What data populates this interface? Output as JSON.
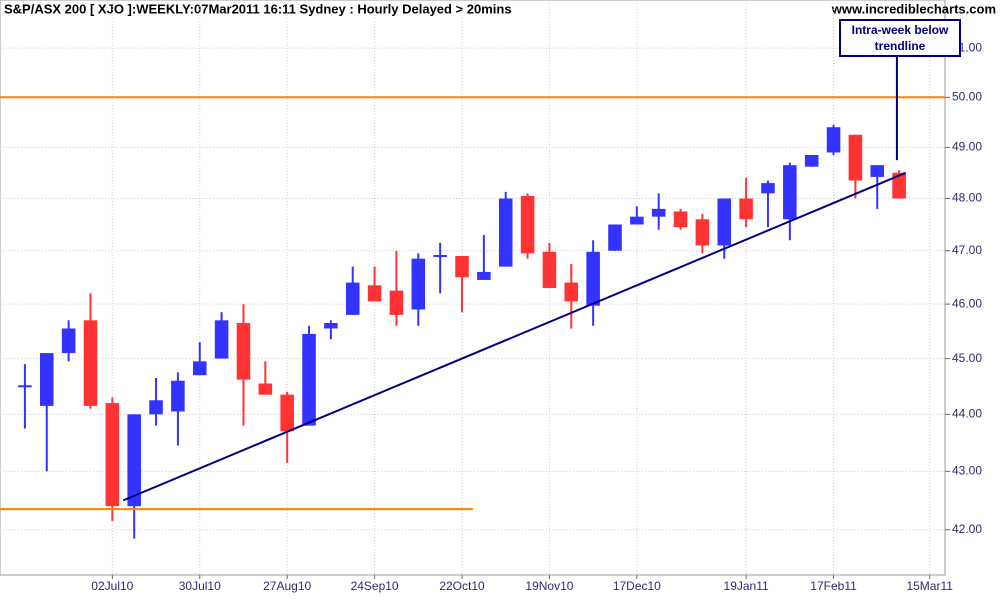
{
  "chart_data": {
    "type": "candlestick",
    "title": "S&P/ASX 200 [ XJO ]:WEEKLY:07Mar2011 16:11 Sydney : Hourly Delayed > 20mins",
    "source": "www.incrediblecharts.com",
    "up_color": "#3333ff",
    "down_color": "#ff3333",
    "log_scale": true,
    "grid": true,
    "xlim": [
      -1.14,
      42.1
    ],
    "ylim": [
      41.24,
      52.0
    ],
    "yticks": [
      {
        "value": 42,
        "label": "42.00"
      },
      {
        "value": 43,
        "label": "43.00"
      },
      {
        "value": 44,
        "label": "44.00"
      },
      {
        "value": 45,
        "label": "45.00"
      },
      {
        "value": 46,
        "label": "46.00"
      },
      {
        "value": 47,
        "label": "47.00"
      },
      {
        "value": 48,
        "label": "48.00"
      },
      {
        "value": 49,
        "label": "49.00"
      },
      {
        "value": 50,
        "label": "50.00"
      },
      {
        "value": 51,
        "label": "51.00"
      }
    ],
    "xticks": [
      {
        "value": 4,
        "label": "02Jul10"
      },
      {
        "value": 8,
        "label": "30Jul10"
      },
      {
        "value": 12,
        "label": "27Aug10"
      },
      {
        "value": 16,
        "label": "24Sep10"
      },
      {
        "value": 20,
        "label": "22Oct10"
      },
      {
        "value": 24,
        "label": "19Nov10"
      },
      {
        "value": 28,
        "label": "17Dec10"
      },
      {
        "value": 33,
        "label": "19Jan11"
      },
      {
        "value": 37,
        "label": "17Feb11"
      },
      {
        "value": 41.4,
        "label": "15Mar11"
      }
    ],
    "open": [
      44.5,
      44.15,
      45.1,
      45.7,
      44.2,
      42.4,
      44.0,
      44.05,
      44.7,
      45.0,
      45.65,
      44.55,
      44.35,
      43.8,
      45.55,
      45.8,
      46.35,
      46.25,
      45.9,
      46.9,
      46.9,
      46.45,
      46.7,
      48.05,
      46.98,
      46.4,
      45.97,
      47.0,
      47.5,
      47.65,
      47.75,
      47.6,
      47.1,
      48.0,
      48.1,
      47.6,
      48.62,
      48.9,
      49.25,
      48.42,
      48.5
    ],
    "high": [
      44.9,
      45.1,
      45.7,
      46.2,
      44.3,
      44.0,
      44.65,
      44.75,
      45.3,
      45.85,
      46.0,
      44.95,
      44.4,
      45.6,
      45.7,
      46.7,
      46.7,
      47.0,
      46.95,
      47.15,
      46.9,
      47.3,
      48.13,
      48.1,
      47.15,
      46.75,
      47.2,
      47.5,
      47.85,
      48.1,
      47.8,
      47.7,
      48.0,
      48.4,
      48.35,
      48.7,
      48.85,
      49.45,
      49.25,
      48.65,
      48.55
    ],
    "low": [
      43.75,
      43.0,
      44.95,
      44.1,
      42.15,
      41.85,
      43.8,
      43.45,
      44.7,
      45.0,
      43.8,
      44.35,
      43.15,
      43.8,
      45.35,
      45.8,
      46.05,
      45.6,
      45.6,
      46.2,
      45.85,
      46.45,
      46.7,
      46.85,
      46.3,
      45.55,
      45.6,
      47.0,
      47.5,
      47.4,
      47.4,
      46.95,
      46.85,
      47.45,
      47.45,
      47.2,
      48.62,
      48.85,
      48.0,
      47.8,
      48.0
    ],
    "close": [
      44.5,
      45.1,
      45.55,
      44.15,
      42.4,
      44.0,
      44.25,
      44.6,
      44.95,
      45.7,
      44.62,
      44.35,
      43.7,
      45.45,
      45.65,
      46.4,
      46.05,
      45.8,
      46.85,
      46.9,
      46.5,
      46.6,
      48.0,
      46.95,
      46.3,
      46.05,
      46.98,
      47.5,
      47.65,
      47.8,
      47.45,
      47.1,
      48.0,
      47.6,
      48.3,
      48.65,
      48.85,
      49.4,
      48.35,
      48.65,
      48.0
    ],
    "lines": [
      {
        "x": [
          -1.14,
          42.1
        ],
        "y": [
          50,
          50
        ],
        "color": "#ff8000"
      },
      {
        "x": [
          -1.14,
          20.5
        ],
        "y": [
          42.35,
          42.35
        ],
        "color": "#ff8000"
      },
      {
        "x": [
          4.5,
          40.3
        ],
        "y": [
          42.5,
          48.5
        ],
        "color": "#000080"
      }
    ],
    "annotation": {
      "text": "Intra-week below trendline",
      "x": 39.9,
      "y": 48.75,
      "color": "#000080"
    }
  }
}
